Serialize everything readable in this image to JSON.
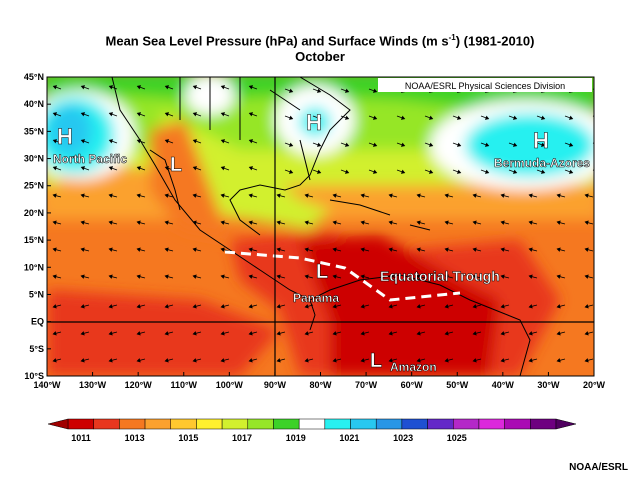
{
  "title": {
    "line1": "Mean Sea Level Pressure (hPa) and Surface Winds (m s",
    "superscript": "-1",
    "line1_end": ") (1981-2010)",
    "line2": "October"
  },
  "map": {
    "extent": {
      "lon": [
        -140,
        -20
      ],
      "lat": [
        -10,
        45
      ]
    },
    "lat_labels": [
      "45°N",
      "40°N",
      "35°N",
      "30°N",
      "25°N",
      "20°N",
      "15°N",
      "10°N",
      "5°N",
      "EQ",
      "5°S",
      "10°S"
    ],
    "lon_labels": [
      "140°W",
      "130°W",
      "120°W",
      "110°W",
      "100°W",
      "90°W",
      "80°W",
      "70°W",
      "60°W",
      "50°W",
      "40°W",
      "30°W",
      "20°W"
    ],
    "source_box": "NOAA/ESRL Physical Sciences Division",
    "annotations": {
      "north_pacific": {
        "symbol": "H",
        "label": "North Pacific"
      },
      "bermuda_azores": {
        "symbol": "H",
        "label": "Bermuda-Azores"
      },
      "usa_high": {
        "symbol": "H"
      },
      "mexico_low": {
        "symbol": "L"
      },
      "panama_low": {
        "symbol": "L",
        "label": "Panama"
      },
      "amazon_low": {
        "symbol": "L",
        "label": "Amazon"
      },
      "trough": {
        "label": "Equatorial Trough"
      }
    }
  },
  "colorbar": {
    "labels": [
      "1011",
      "1013",
      "1015",
      "1017",
      "1019",
      "1021",
      "1023",
      "1025"
    ],
    "colors": [
      "#cd0000",
      "#e8371e",
      "#f57820",
      "#fba12e",
      "#ffc82e",
      "#fff02e",
      "#d2f02e",
      "#96e628",
      "#3cd228",
      "#ffffff",
      "#28f0f0",
      "#28c8f0",
      "#2896e6",
      "#1e50d2",
      "#6428c8",
      "#b428c8",
      "#dc28dc",
      "#aa0ab4",
      "#6e0080"
    ]
  },
  "credit": "NOAA/ESRL"
}
